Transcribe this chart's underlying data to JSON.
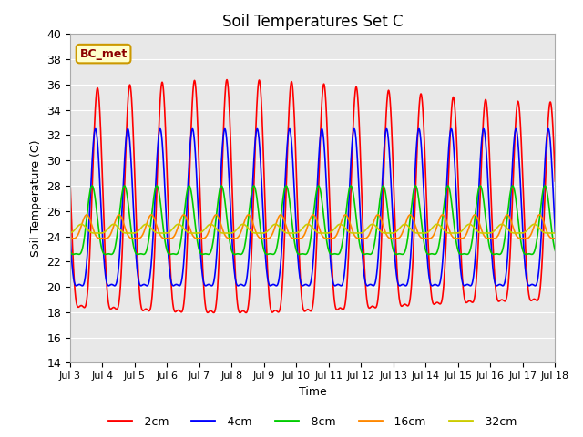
{
  "title": "Soil Temperatures Set C",
  "xlabel": "Time",
  "ylabel": "Soil Temperature (C)",
  "ylim": [
    14,
    40
  ],
  "yticks": [
    14,
    16,
    18,
    20,
    22,
    24,
    26,
    28,
    30,
    32,
    34,
    36,
    38,
    40
  ],
  "xtick_labels": [
    "Jul 3",
    "Jul 4",
    "Jul 5",
    "Jul 6",
    "Jul 7",
    "Jul 8",
    "Jul 9",
    "Jul 10",
    "Jul 11",
    "Jul 12",
    "Jul 13",
    "Jul 14",
    "Jul 15",
    "Jul 16",
    "Jul 17",
    "Jul 18"
  ],
  "annotation": "BC_met",
  "colors": {
    "-2cm": "#ff0000",
    "-4cm": "#0000ff",
    "-8cm": "#00cc00",
    "-16cm": "#ff8800",
    "-32cm": "#cccc00"
  },
  "legend_labels": [
    "-2cm",
    "-4cm",
    "-8cm",
    "-16cm",
    "-32cm"
  ],
  "background_color": "#e8e8e8",
  "start_day": 3,
  "end_day": 18,
  "mean_temp": 24.5,
  "depths": [
    "-2cm",
    "-4cm",
    "-8cm",
    "-16cm",
    "-32cm"
  ],
  "amplitudes": [
    11.0,
    8.0,
    3.5,
    1.2,
    0.45
  ],
  "phase_lags_hours": [
    0.0,
    1.5,
    4.0,
    8.0,
    12.0
  ],
  "skew": 3.0
}
